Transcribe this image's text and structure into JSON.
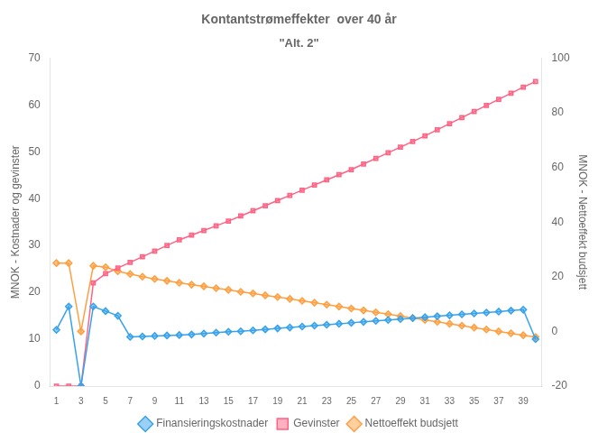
{
  "chart_data": {
    "type": "line",
    "title": "Kontantstrømeffekter  over 40 år",
    "subtitle": "\"Alt. 2\"",
    "ylabel": "MNOK - Kostnader og gevinster",
    "y2label": "MNOK - Nettoeffekt budsjett",
    "x": [
      1,
      2,
      3,
      4,
      5,
      6,
      7,
      8,
      9,
      10,
      11,
      12,
      13,
      14,
      15,
      16,
      17,
      18,
      19,
      20,
      21,
      22,
      23,
      24,
      25,
      26,
      27,
      28,
      29,
      30,
      31,
      32,
      33,
      34,
      35,
      36,
      37,
      38,
      39,
      40
    ],
    "xlim": [
      0.5,
      40.5
    ],
    "xticks": [
      1,
      3,
      5,
      7,
      9,
      11,
      13,
      15,
      17,
      19,
      21,
      23,
      25,
      27,
      29,
      31,
      33,
      35,
      37,
      39
    ],
    "ylim": [
      0,
      70
    ],
    "yticks": [
      0,
      10,
      20,
      30,
      40,
      50,
      60,
      70
    ],
    "y2lim": [
      -20,
      100
    ],
    "y2ticks": [
      -20,
      0,
      20,
      40,
      60,
      80,
      100
    ],
    "grid": false,
    "legend": "bottom",
    "series": [
      {
        "name": "Finansieringskostnader",
        "marker": "diamond",
        "values": [
          12,
          17,
          0,
          17,
          16,
          15,
          10.5,
          10.6,
          10.7,
          10.8,
          10.9,
          11.0,
          11.2,
          11.4,
          11.6,
          11.7,
          11.9,
          12.1,
          12.3,
          12.5,
          12.7,
          12.9,
          13.1,
          13.3,
          13.5,
          13.7,
          13.9,
          14.1,
          14.3,
          14.5,
          14.7,
          14.9,
          15.1,
          15.3,
          15.5,
          15.7,
          15.9,
          16.1,
          16.3,
          10.0
        ]
      },
      {
        "name": "Gevinster",
        "marker": "square",
        "values": [
          0.0,
          0.0,
          0.0,
          22.0,
          24.0,
          25.2,
          26.4,
          27.6,
          28.8,
          30.0,
          31.2,
          32.2,
          33.2,
          34.2,
          35.2,
          36.3,
          37.4,
          38.5,
          39.6,
          40.7,
          41.8,
          42.9,
          44.0,
          45.1,
          46.2,
          47.4,
          48.6,
          49.8,
          51.0,
          52.2,
          53.4,
          54.7,
          56.0,
          57.3,
          58.6,
          59.9,
          61.2,
          62.5,
          63.8,
          65.0
        ]
      },
      {
        "name": "Nettoeffekt budsjett",
        "marker": "diamond",
        "axis": "y2",
        "values": [
          25.0,
          25.0,
          0.0,
          24.0,
          23.5,
          22.0,
          21.0,
          20.0,
          19.2,
          18.5,
          17.8,
          17.1,
          16.5,
          15.8,
          15.2,
          14.5,
          13.9,
          13.2,
          12.6,
          11.9,
          11.2,
          10.5,
          9.8,
          9.1,
          8.4,
          7.7,
          7.0,
          6.3,
          5.6,
          4.9,
          4.2,
          3.5,
          2.8,
          2.1,
          1.4,
          0.7,
          0.0,
          -0.7,
          -1.4,
          -2.0
        ]
      }
    ]
  }
}
